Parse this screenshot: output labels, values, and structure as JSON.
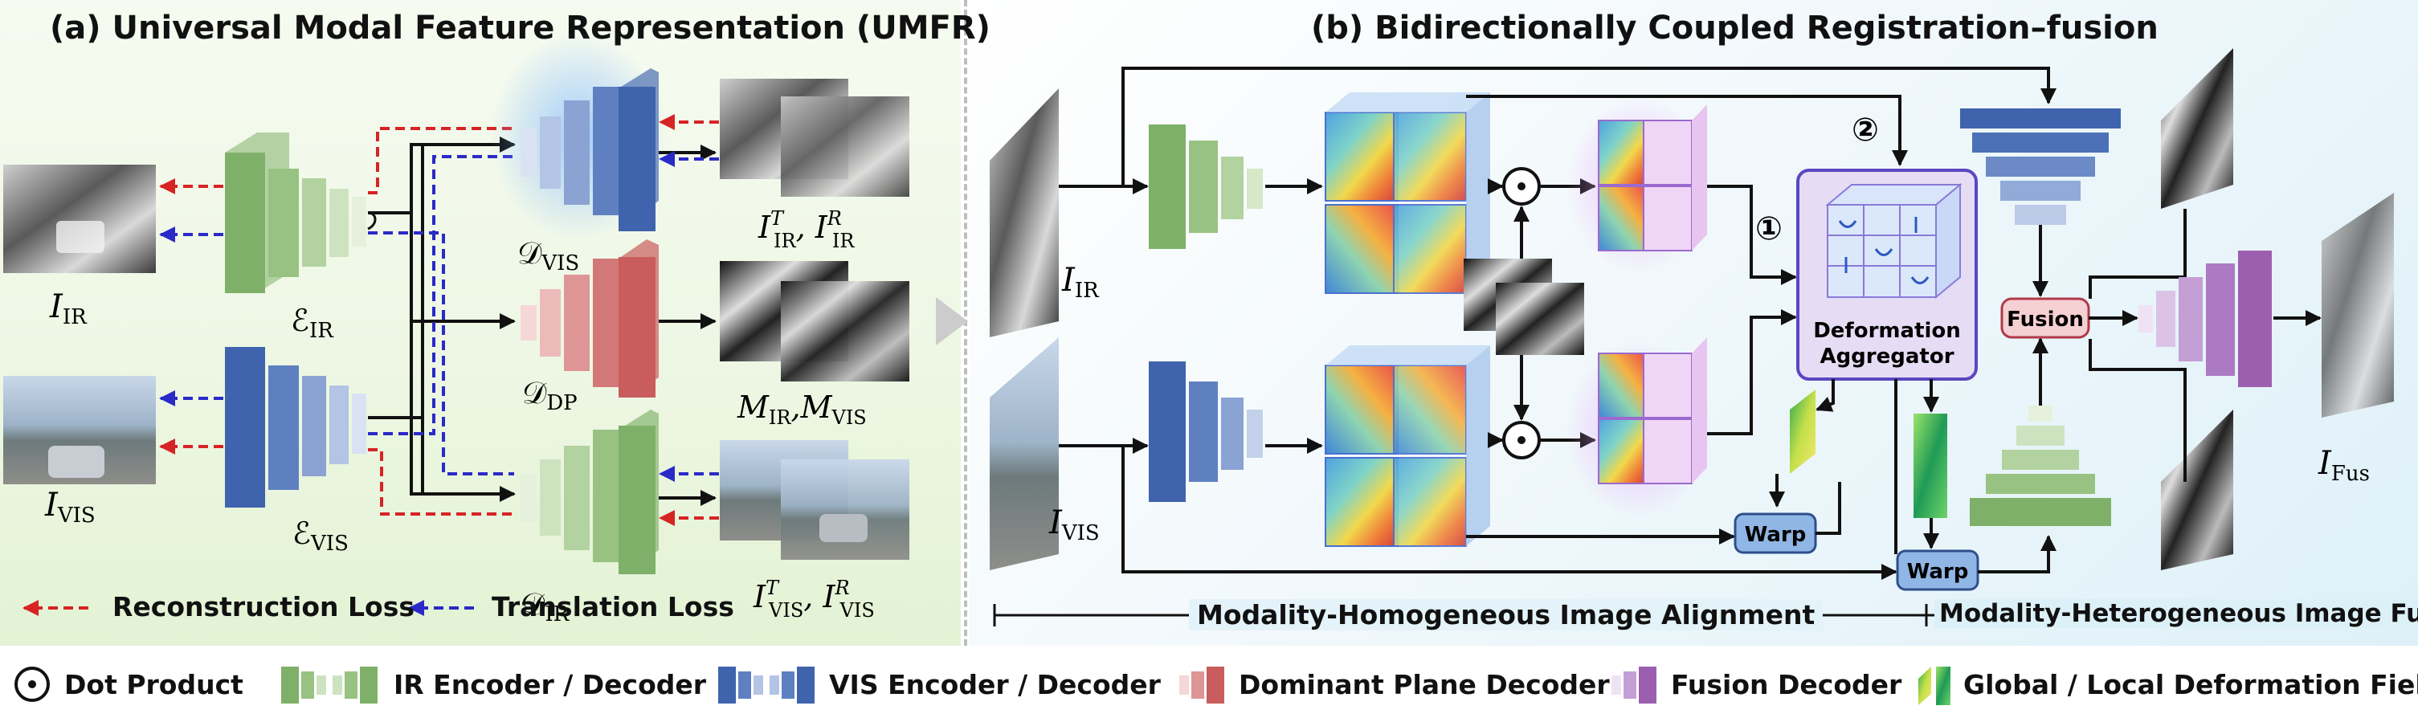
{
  "titles": {
    "a": "(a) Universal Modal Feature Representation (UMFR)",
    "b": "(b) Bidirectionally Coupled Registration–fusion"
  },
  "losses": {
    "reconstruction": "Reconstruction Loss",
    "translation": "Translation Loss"
  },
  "blocks": {
    "deformation_aggregator": [
      "Deformation",
      "Aggregator"
    ],
    "fusion": "Fusion",
    "warp": "Warp",
    "step1": "①",
    "step2": "②"
  },
  "sections": {
    "homogeneous": "Modality-Homogeneous Image Alignment",
    "heterogeneous": "Modality-Heterogeneous Image Fusion"
  },
  "legend": [
    {
      "icon": "dot-product-icon",
      "label": "Dot Product"
    },
    {
      "icon": "ir-encoder-decoder-icon",
      "label": "IR Encoder / Decoder"
    },
    {
      "icon": "vis-encoder-decoder-icon",
      "label": "VIS Encoder / Decoder"
    },
    {
      "icon": "dominant-plane-decoder-icon",
      "label": "Dominant Plane Decoder"
    },
    {
      "icon": "fusion-decoder-icon",
      "label": "Fusion Decoder"
    },
    {
      "icon": "deformation-field-icon",
      "label": "Global / Local Deformation Field"
    }
  ],
  "colors": {
    "ir_green": "#7fb069",
    "vis_blue": "#3f64ad",
    "dp_red": "#c95d5d",
    "fusion_purple": "#9c5fb0",
    "reconstruction": "#d62424",
    "translation": "#2a2ac8",
    "aggregator_fill": "#e6ddf5",
    "fusion_fill": "#f5d0d3",
    "warp_fill": "#8fb6e4"
  }
}
